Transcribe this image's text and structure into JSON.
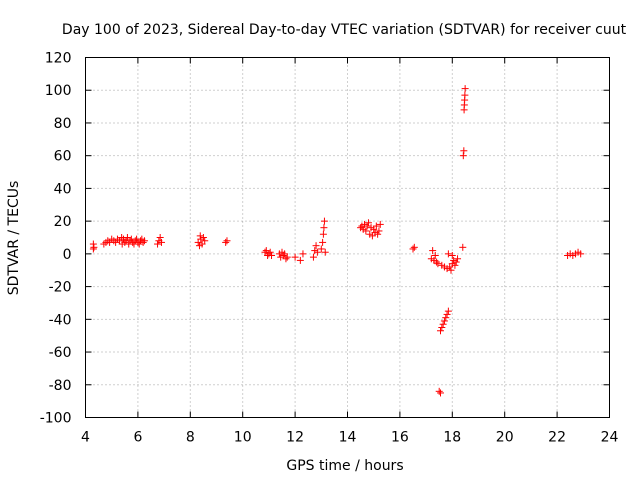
{
  "chart_data": {
    "type": "scatter",
    "title": "Day 100 of 2023, Sidereal Day-to-day VTEC variation (SDTVAR) for receiver cuut",
    "xlabel": "GPS time / hours",
    "ylabel": "SDTVAR / TECUs",
    "xlim": [
      4,
      24
    ],
    "ylim": [
      -100,
      120
    ],
    "xticks": [
      "4",
      "6",
      "8",
      "10",
      "12",
      "14",
      "16",
      "18",
      "20",
      "22",
      "24"
    ],
    "yticks": [
      "-100",
      "-80",
      "-60",
      "-40",
      "-20",
      "0",
      "20",
      "40",
      "60",
      "80",
      "100",
      "120"
    ],
    "grid": true,
    "marker": "plus",
    "marker_color": "#ff0000",
    "series": [
      {
        "name": "SDTVAR",
        "points": [
          [
            4.3,
            3
          ],
          [
            4.3,
            6
          ],
          [
            4.32,
            4
          ],
          [
            4.7,
            6
          ],
          [
            4.78,
            7
          ],
          [
            4.85,
            8
          ],
          [
            4.92,
            7
          ],
          [
            5.0,
            9
          ],
          [
            5.08,
            8
          ],
          [
            5.15,
            7
          ],
          [
            5.22,
            9
          ],
          [
            5.3,
            8
          ],
          [
            5.38,
            10
          ],
          [
            5.4,
            6
          ],
          [
            5.45,
            9
          ],
          [
            5.5,
            7
          ],
          [
            5.55,
            8
          ],
          [
            5.6,
            10
          ],
          [
            5.65,
            6
          ],
          [
            5.7,
            8
          ],
          [
            5.75,
            9
          ],
          [
            5.8,
            7
          ],
          [
            5.85,
            6
          ],
          [
            5.9,
            8
          ],
          [
            5.95,
            9
          ],
          [
            6.0,
            7
          ],
          [
            6.05,
            6
          ],
          [
            6.1,
            8
          ],
          [
            6.15,
            9
          ],
          [
            6.2,
            7
          ],
          [
            6.25,
            8
          ],
          [
            6.75,
            6
          ],
          [
            6.8,
            8
          ],
          [
            6.85,
            10
          ],
          [
            6.9,
            7
          ],
          [
            8.3,
            7
          ],
          [
            8.35,
            5
          ],
          [
            8.38,
            11
          ],
          [
            8.4,
            9
          ],
          [
            8.45,
            6
          ],
          [
            8.5,
            10
          ],
          [
            8.55,
            8
          ],
          [
            9.35,
            7
          ],
          [
            9.4,
            8
          ],
          [
            10.85,
            1
          ],
          [
            10.9,
            2
          ],
          [
            10.95,
            -1
          ],
          [
            11.0,
            0
          ],
          [
            11.05,
            1
          ],
          [
            11.1,
            -1
          ],
          [
            11.4,
            0
          ],
          [
            11.45,
            -2
          ],
          [
            11.5,
            1
          ],
          [
            11.55,
            -1
          ],
          [
            11.6,
            0
          ],
          [
            11.65,
            -3
          ],
          [
            11.7,
            -2
          ],
          [
            12.0,
            -2
          ],
          [
            12.2,
            -4
          ],
          [
            12.3,
            0
          ],
          [
            12.7,
            -2
          ],
          [
            12.75,
            2
          ],
          [
            12.8,
            5
          ],
          [
            12.85,
            1
          ],
          [
            13.0,
            3
          ],
          [
            13.05,
            7
          ],
          [
            13.08,
            12
          ],
          [
            13.1,
            16
          ],
          [
            13.12,
            20
          ],
          [
            13.15,
            1
          ],
          [
            14.5,
            16
          ],
          [
            14.55,
            17
          ],
          [
            14.6,
            15
          ],
          [
            14.65,
            18
          ],
          [
            14.7,
            14
          ],
          [
            14.75,
            17
          ],
          [
            14.8,
            19
          ],
          [
            14.85,
            12
          ],
          [
            14.9,
            16
          ],
          [
            14.95,
            11
          ],
          [
            15.0,
            15
          ],
          [
            15.05,
            13
          ],
          [
            15.1,
            17
          ],
          [
            15.15,
            12
          ],
          [
            15.2,
            14
          ],
          [
            15.25,
            18
          ],
          [
            16.5,
            3
          ],
          [
            16.55,
            4
          ],
          [
            17.2,
            -3
          ],
          [
            17.25,
            2
          ],
          [
            17.3,
            -4
          ],
          [
            17.35,
            -1
          ],
          [
            17.4,
            -5
          ],
          [
            17.45,
            -6
          ],
          [
            17.5,
            -84
          ],
          [
            17.55,
            -85
          ],
          [
            17.55,
            -47
          ],
          [
            17.6,
            -45
          ],
          [
            17.65,
            -43
          ],
          [
            17.7,
            -41
          ],
          [
            17.75,
            -39
          ],
          [
            17.8,
            -37
          ],
          [
            17.85,
            -35
          ],
          [
            17.6,
            -7
          ],
          [
            17.7,
            -8
          ],
          [
            17.8,
            -9
          ],
          [
            17.9,
            -8
          ],
          [
            17.95,
            -10
          ],
          [
            18.0,
            -6
          ],
          [
            18.05,
            -4
          ],
          [
            18.1,
            -7
          ],
          [
            18.15,
            -5
          ],
          [
            18.2,
            -3
          ],
          [
            17.85,
            0
          ],
          [
            18.0,
            -1
          ],
          [
            18.4,
            4
          ],
          [
            18.42,
            60
          ],
          [
            18.44,
            63
          ],
          [
            18.45,
            88
          ],
          [
            18.46,
            91
          ],
          [
            18.47,
            94
          ],
          [
            18.48,
            97
          ],
          [
            18.49,
            101
          ],
          [
            22.4,
            -1
          ],
          [
            22.5,
            0
          ],
          [
            22.6,
            -1
          ],
          [
            22.7,
            0
          ],
          [
            22.8,
            1
          ],
          [
            22.9,
            0
          ]
        ]
      }
    ]
  }
}
